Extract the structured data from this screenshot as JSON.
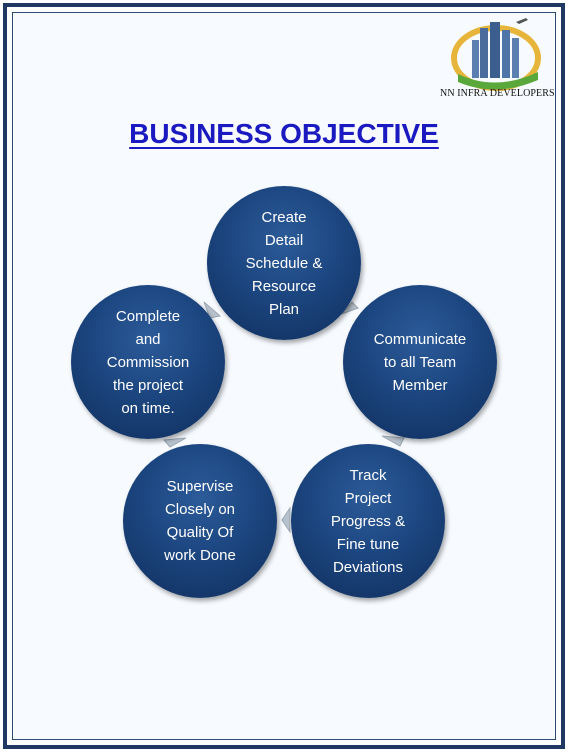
{
  "brand": {
    "name": "NN INFRA DEVELOPERS"
  },
  "title": "BUSINESS OBJECTIVE",
  "cycle": {
    "steps": [
      {
        "label": "Create\nDetail\nSchedule &\nResource\nPlan"
      },
      {
        "label": "Communicate\nto all Team\nMember"
      },
      {
        "label": "Track\nProject\nProgress &\nFine tune\nDeviations"
      },
      {
        "label": "Supervise\nClosely on\nQuality Of\nwork Done"
      },
      {
        "label": "Complete\nand\nCommission\nthe project\non time."
      }
    ]
  },
  "colors": {
    "border": "#1f3864",
    "title": "#1a1ac0",
    "node_fill": "#1c4680",
    "arrow": "#b8c2cc"
  }
}
